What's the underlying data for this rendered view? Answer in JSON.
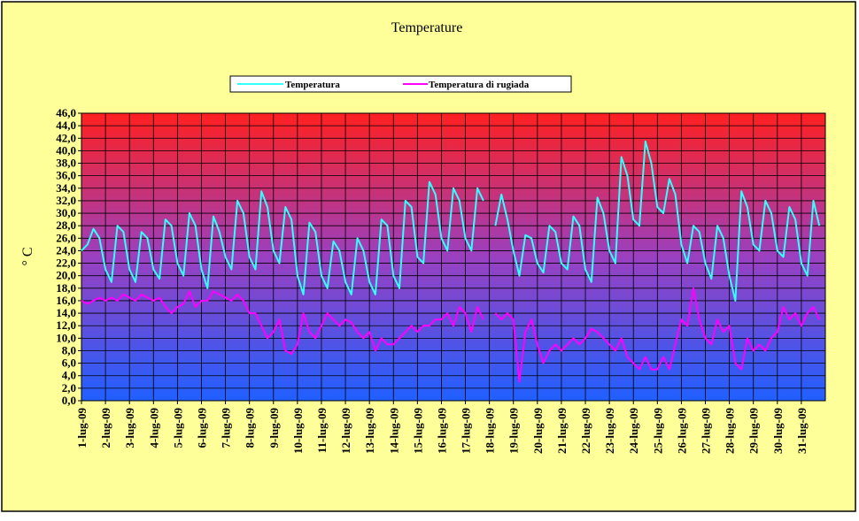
{
  "chart_data": {
    "type": "line",
    "title": "Temperature",
    "y_label": "° C",
    "grid": true,
    "legend": "top",
    "x": [
      0,
      6,
      12,
      18,
      24,
      30,
      36,
      42,
      48,
      54,
      60,
      66,
      72,
      78,
      84,
      90,
      96,
      102,
      108,
      114,
      120,
      126,
      132,
      138,
      144,
      150,
      156,
      162,
      168,
      174,
      180,
      186,
      192,
      198,
      204,
      210,
      216,
      222,
      228,
      234,
      240,
      246,
      252,
      258,
      264,
      270,
      276,
      282,
      288,
      294,
      300,
      306,
      312,
      318,
      324,
      330,
      336,
      342,
      348,
      354,
      360,
      366,
      372,
      378,
      384,
      390,
      396,
      402,
      408,
      414,
      420,
      426,
      432,
      438,
      444,
      450,
      456,
      462,
      468,
      474,
      480,
      486,
      492,
      498,
      504,
      510,
      516,
      522,
      528,
      534,
      540,
      546,
      552,
      558,
      564,
      570,
      576,
      582,
      588,
      594,
      600,
      606,
      612,
      618,
      624,
      630,
      636,
      642,
      648,
      654,
      660,
      666,
      672,
      678,
      684,
      690,
      696,
      702,
      708,
      714,
      720,
      726,
      732,
      738
    ],
    "xlim": [
      0,
      744
    ],
    "xticks": [
      {
        "value": 0,
        "label": "1-lug-09"
      },
      {
        "value": 24,
        "label": "2-lug-09"
      },
      {
        "value": 48,
        "label": "3-lug-09"
      },
      {
        "value": 72,
        "label": "4-lug-09"
      },
      {
        "value": 96,
        "label": "5-lug-09"
      },
      {
        "value": 120,
        "label": "6-lug-09"
      },
      {
        "value": 144,
        "label": "7-lug-09"
      },
      {
        "value": 168,
        "label": "8-lug-09"
      },
      {
        "value": 192,
        "label": "9-lug-09"
      },
      {
        "value": 216,
        "label": "10-lug-09"
      },
      {
        "value": 240,
        "label": "11-lug-09"
      },
      {
        "value": 264,
        "label": "12-lug-09"
      },
      {
        "value": 288,
        "label": "13-lug-09"
      },
      {
        "value": 312,
        "label": "14-lug-09"
      },
      {
        "value": 336,
        "label": "15-lug-09"
      },
      {
        "value": 360,
        "label": "16-lug-09"
      },
      {
        "value": 384,
        "label": "17-lug-09"
      },
      {
        "value": 408,
        "label": "18-lug-09"
      },
      {
        "value": 432,
        "label": "19-lug-09"
      },
      {
        "value": 456,
        "label": "20-lug-09"
      },
      {
        "value": 480,
        "label": "21-lug-09"
      },
      {
        "value": 504,
        "label": "22-lug-09"
      },
      {
        "value": 528,
        "label": "23-lug-09"
      },
      {
        "value": 552,
        "label": "24-lug-09"
      },
      {
        "value": 576,
        "label": "25-lug-09"
      },
      {
        "value": 600,
        "label": "26-lug-09"
      },
      {
        "value": 624,
        "label": "27-lug-09"
      },
      {
        "value": 648,
        "label": "28-lug-09"
      },
      {
        "value": 672,
        "label": "29-lug-09"
      },
      {
        "value": 696,
        "label": "30-lug-09"
      },
      {
        "value": 720,
        "label": "31-lug-09"
      }
    ],
    "ylim": [
      0,
      46
    ],
    "yticks": [
      {
        "value": 0,
        "label": "0,0"
      },
      {
        "value": 2,
        "label": "2,0"
      },
      {
        "value": 4,
        "label": "4,0"
      },
      {
        "value": 6,
        "label": "6,0"
      },
      {
        "value": 8,
        "label": "8,0"
      },
      {
        "value": 10,
        "label": "10,0"
      },
      {
        "value": 12,
        "label": "12,0"
      },
      {
        "value": 14,
        "label": "14,0"
      },
      {
        "value": 16,
        "label": "16,0"
      },
      {
        "value": 18,
        "label": "18,0"
      },
      {
        "value": 20,
        "label": "20,0"
      },
      {
        "value": 22,
        "label": "22,0"
      },
      {
        "value": 24,
        "label": "24,0"
      },
      {
        "value": 26,
        "label": "26,0"
      },
      {
        "value": 28,
        "label": "28,0"
      },
      {
        "value": 30,
        "label": "30,0"
      },
      {
        "value": 32,
        "label": "32,0"
      },
      {
        "value": 34,
        "label": "34,0"
      },
      {
        "value": 36,
        "label": "36,0"
      },
      {
        "value": 38,
        "label": "38,0"
      },
      {
        "value": 40,
        "label": "40,0"
      },
      {
        "value": 42,
        "label": "42,0"
      },
      {
        "value": 44,
        "label": "44,0"
      },
      {
        "value": 46,
        "label": "46,0"
      }
    ],
    "series": [
      {
        "name": "Temperatura",
        "color": "#33ffff",
        "values": [
          24,
          25,
          27.5,
          26,
          21,
          19,
          28,
          27,
          21,
          19,
          27,
          26,
          21,
          19.5,
          29,
          28,
          22,
          20,
          30,
          28,
          21,
          18,
          29.5,
          27,
          23,
          21,
          32,
          30,
          23,
          21,
          33.5,
          31,
          24,
          22,
          31,
          29,
          20,
          17,
          28.5,
          27,
          20,
          18,
          25.5,
          24,
          19,
          17,
          26,
          24,
          19,
          17,
          29,
          28,
          20,
          18,
          32,
          31,
          23,
          22,
          35,
          33,
          26,
          24,
          34,
          32,
          26,
          24,
          34,
          32,
          null,
          28,
          33,
          29,
          24,
          20,
          26.5,
          26,
          22,
          20.5,
          28,
          27,
          22,
          21,
          29.5,
          28,
          21,
          19,
          32.5,
          30,
          24,
          22,
          39,
          36,
          29,
          28,
          41.5,
          38,
          31,
          30,
          35.5,
          33,
          25,
          22,
          28,
          27,
          22,
          19.5,
          28,
          26,
          20,
          16,
          33.5,
          31,
          25,
          24,
          32,
          30,
          24,
          23,
          31,
          29,
          22,
          20,
          32,
          28
        ]
      },
      {
        "name": "Temperatura di rugiada",
        "color": "#ff00ff",
        "values": [
          16,
          15.5,
          16,
          16.5,
          16,
          16.5,
          16,
          17,
          16.5,
          16,
          17,
          16.5,
          16,
          16.5,
          15,
          14,
          15,
          15.5,
          17.5,
          15,
          16,
          16,
          17.5,
          17,
          16.5,
          16,
          17,
          16,
          14,
          14,
          12,
          10,
          11,
          13,
          8,
          7.5,
          9,
          14,
          11,
          10,
          12,
          14,
          13,
          12,
          13,
          12.5,
          11,
          10,
          11,
          8,
          10,
          9,
          9,
          10,
          11,
          12,
          11,
          12,
          12,
          13,
          13,
          14,
          12,
          15,
          14,
          11,
          15,
          13,
          null,
          14,
          13,
          14,
          13,
          3,
          11,
          13,
          9,
          6,
          8,
          9,
          8,
          9,
          10,
          9,
          10,
          11.5,
          11,
          10,
          9,
          8,
          10,
          7,
          6,
          5,
          7,
          5,
          5,
          7,
          5,
          9,
          13,
          12,
          18,
          13,
          10,
          9,
          13,
          11,
          12,
          6,
          5,
          10,
          8,
          9,
          8,
          10,
          11,
          15,
          13,
          14,
          12,
          14,
          15,
          13
        ]
      }
    ]
  }
}
